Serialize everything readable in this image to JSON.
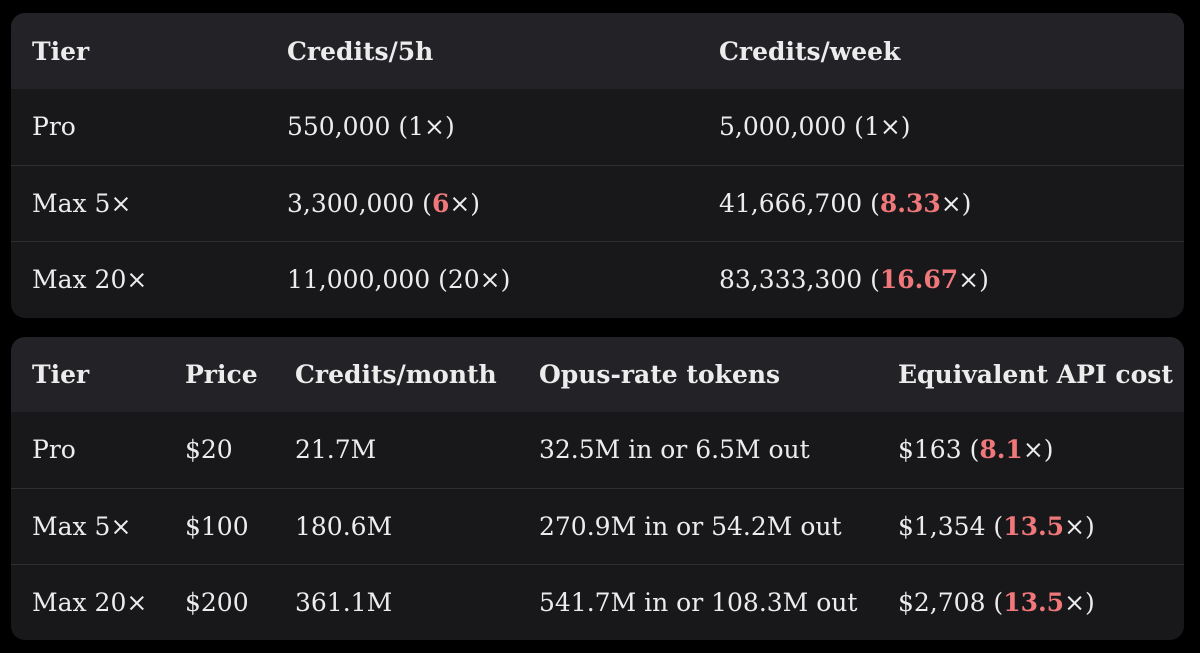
{
  "credits_table": {
    "headers": [
      "Tier",
      "Credits/5h",
      "Credits/week"
    ],
    "rows": [
      {
        "tier": "Pro",
        "per5h": {
          "value": "550,000",
          "open": " (",
          "mult": "1",
          "close": "×)",
          "mult_highlight": false
        },
        "week": {
          "value": "5,000,000",
          "open": " (",
          "mult": "1",
          "close": "×)",
          "mult_highlight": false
        }
      },
      {
        "tier": "Max 5×",
        "per5h": {
          "value": "3,300,000",
          "open": " (",
          "mult": "6",
          "close": "×)",
          "mult_highlight": true
        },
        "week": {
          "value": "41,666,700",
          "open": " (",
          "mult": "8.33",
          "close": "×)",
          "mult_highlight": true
        }
      },
      {
        "tier": "Max 20×",
        "per5h": {
          "value": "11,000,000",
          "open": " (",
          "mult": "20",
          "close": "×)",
          "mult_highlight": false
        },
        "week": {
          "value": "83,333,300",
          "open": " (",
          "mult": "16.67",
          "close": "×)",
          "mult_highlight": true
        }
      }
    ]
  },
  "pricing_table": {
    "headers": [
      "Tier",
      "Price",
      "Credits/month",
      "Opus-rate tokens",
      "Equivalent API cost"
    ],
    "rows": [
      {
        "tier": "Pro",
        "price": "$20",
        "credits_month": "21.7M",
        "opus_tokens": "32.5M in or 6.5M out",
        "api_cost": {
          "value": "$163",
          "open": " (",
          "mult": "8.1",
          "close": "×)"
        }
      },
      {
        "tier": "Max 5×",
        "price": "$100",
        "credits_month": "180.6M",
        "opus_tokens": "270.9M in or 54.2M out",
        "api_cost": {
          "value": "$1,354",
          "open": " (",
          "mult": "13.5",
          "close": "×)"
        }
      },
      {
        "tier": "Max 20×",
        "price": "$200",
        "credits_month": "361.1M",
        "opus_tokens": "541.7M in or 108.3M out",
        "api_cost": {
          "value": "$2,708",
          "open": " (",
          "mult": "13.5",
          "close": "×)"
        }
      }
    ]
  },
  "colors": {
    "background": "#000000",
    "card": "#18181b",
    "header_row": "#232327",
    "text": "#ececec",
    "highlight": "#f0787a",
    "divider": "#2e2e33"
  }
}
